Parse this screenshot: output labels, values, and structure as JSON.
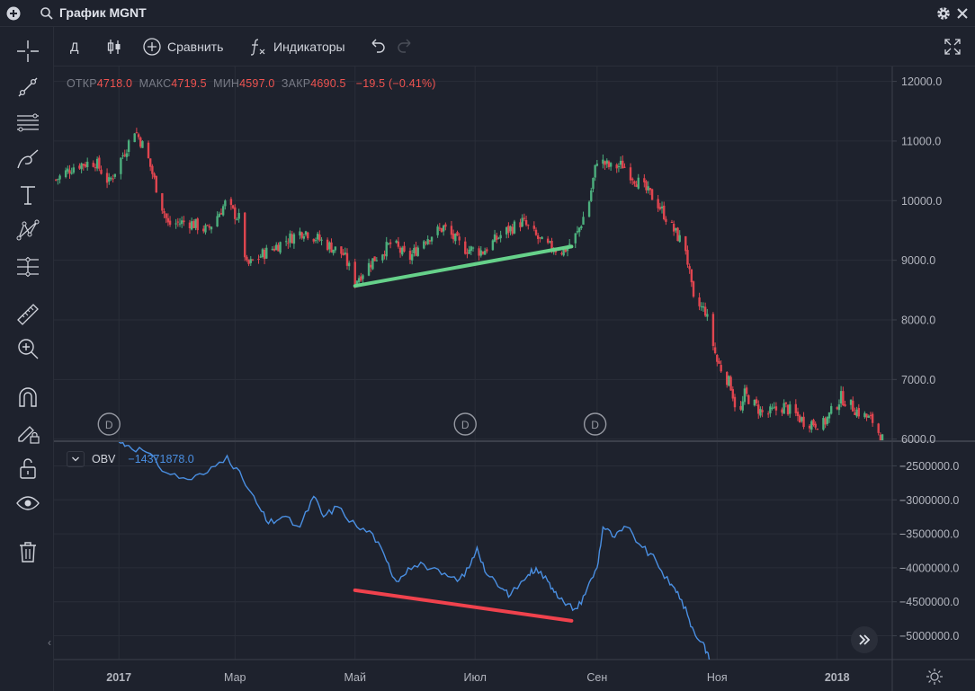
{
  "window": {
    "title": "График MGNT"
  },
  "toolbar": {
    "interval": "Д",
    "compare_label": "Сравнить",
    "indicators_label": "Индикаторы"
  },
  "legend": {
    "open_label": "ОТКР",
    "open_value": "4718.0",
    "high_label": "МАКС",
    "high_value": "4719.5",
    "low_label": "МИН",
    "low_value": "4597.0",
    "close_label": "ЗАКР",
    "close_value": "4690.5",
    "change": "−19.5 (−0.41%)"
  },
  "obv_legend": {
    "name": "OBV",
    "value": "−14371878.0"
  },
  "dividend_marker_label": "D",
  "colors": {
    "up": "#4caf7d",
    "down": "#e0454f",
    "obv": "#4a8fe2",
    "trend_up": "#66d18a",
    "trend_down": "#f0424d"
  },
  "chart_data": [
    {
      "type": "candlestick",
      "title": "MGNT",
      "x_tick_labels": [
        "2017",
        "Мар",
        "Май",
        "Июл",
        "Сен",
        "Ноя",
        "2018"
      ],
      "x_tick_dates": [
        "2017-01-01",
        "2017-03-01",
        "2017-05-01",
        "2017-07-01",
        "2017-09-01",
        "2017-11-01",
        "2018-01-01"
      ],
      "x_range": [
        "2016-11-29",
        "2018-01-29"
      ],
      "y_ticks": [
        6000,
        7000,
        8000,
        9000,
        10000,
        11000,
        12000
      ],
      "y_tick_labels": [
        "6000.0",
        "7000.0",
        "8000.0",
        "9000.0",
        "10000.0",
        "11000.0",
        "12000.0"
      ],
      "y_range": [
        5980,
        12250
      ],
      "grid": true,
      "close_path": [
        [
          "2016-11-30",
          10350
        ],
        [
          "2016-12-10",
          10600
        ],
        [
          "2016-12-20",
          10650
        ],
        [
          "2016-12-27",
          10300
        ],
        [
          "2017-01-05",
          10900
        ],
        [
          "2017-01-09",
          11200
        ],
        [
          "2017-01-15",
          10800
        ],
        [
          "2017-01-22",
          10000
        ],
        [
          "2017-01-26",
          9600
        ],
        [
          "2017-02-05",
          9650
        ],
        [
          "2017-02-15",
          9500
        ],
        [
          "2017-02-24",
          9950
        ],
        [
          "2017-03-03",
          9700
        ],
        [
          "2017-03-07",
          8900
        ],
        [
          "2017-03-15",
          9100
        ],
        [
          "2017-03-25",
          9300
        ],
        [
          "2017-04-05",
          9500
        ],
        [
          "2017-04-15",
          9300
        ],
        [
          "2017-04-25",
          9100
        ],
        [
          "2017-05-01",
          8650
        ],
        [
          "2017-05-10",
          9000
        ],
        [
          "2017-05-20",
          9300
        ],
        [
          "2017-05-28",
          9000
        ],
        [
          "2017-06-05",
          9350
        ],
        [
          "2017-06-15",
          9550
        ],
        [
          "2017-06-25",
          9200
        ],
        [
          "2017-07-05",
          9150
        ],
        [
          "2017-07-15",
          9450
        ],
        [
          "2017-07-25",
          9650
        ],
        [
          "2017-08-05",
          9250
        ],
        [
          "2017-08-15",
          9150
        ],
        [
          "2017-08-22",
          9450
        ],
        [
          "2017-08-28",
          10000
        ],
        [
          "2017-09-01",
          10700
        ],
        [
          "2017-09-08",
          10550
        ],
        [
          "2017-09-14",
          10600
        ],
        [
          "2017-09-22",
          10300
        ],
        [
          "2017-10-01",
          10000
        ],
        [
          "2017-10-10",
          9500
        ],
        [
          "2017-10-16",
          9200
        ],
        [
          "2017-10-20",
          8300
        ],
        [
          "2017-10-26",
          8150
        ],
        [
          "2017-11-01",
          7300
        ],
        [
          "2017-11-08",
          6900
        ],
        [
          "2017-11-12",
          6300
        ],
        [
          "2017-11-15",
          6750
        ],
        [
          "2017-11-25",
          6400
        ],
        [
          "2017-12-05",
          6550
        ],
        [
          "2017-12-15",
          6300
        ],
        [
          "2017-12-25",
          6250
        ],
        [
          "2018-01-03",
          6700
        ],
        [
          "2018-01-12",
          6450
        ],
        [
          "2018-01-19",
          6300
        ],
        [
          "2018-01-24",
          6000
        ]
      ],
      "dividend_markers": [
        "2016-12-27",
        "2017-06-26",
        "2017-08-31"
      ],
      "trendline": {
        "from": [
          "2017-05-01",
          8570
        ],
        "to": [
          "2017-08-19",
          9230
        ],
        "color": "up"
      },
      "last_close": 4690.5
    },
    {
      "type": "line",
      "series": [
        {
          "name": "OBV"
        }
      ],
      "y_ticks": [
        -2500000,
        -3000000,
        -3500000,
        -4000000,
        -4500000,
        -5000000
      ],
      "y_tick_labels": [
        "−2500000.0",
        "−3000000.0",
        "−3500000.0",
        "−4000000.0",
        "−4500000.0",
        "−5000000.0"
      ],
      "y_range": [
        -5350000,
        -2150000
      ],
      "grid": true,
      "path": [
        [
          "2017-01-01",
          -2150000
        ],
        [
          "2017-01-06",
          -2200000
        ],
        [
          "2017-01-15",
          -2300000
        ],
        [
          "2017-01-25",
          -2600000
        ],
        [
          "2017-02-05",
          -2700000
        ],
        [
          "2017-02-15",
          -2600000
        ],
        [
          "2017-02-25",
          -2350000
        ],
        [
          "2017-03-05",
          -2700000
        ],
        [
          "2017-03-12",
          -3050000
        ],
        [
          "2017-03-18",
          -3350000
        ],
        [
          "2017-03-25",
          -3250000
        ],
        [
          "2017-04-03",
          -3400000
        ],
        [
          "2017-04-10",
          -2950000
        ],
        [
          "2017-04-15",
          -3250000
        ],
        [
          "2017-04-22",
          -3100000
        ],
        [
          "2017-05-02",
          -3400000
        ],
        [
          "2017-05-10",
          -3500000
        ],
        [
          "2017-05-17",
          -3900000
        ],
        [
          "2017-05-22",
          -4200000
        ],
        [
          "2017-05-28",
          -4000000
        ],
        [
          "2017-06-05",
          -3950000
        ],
        [
          "2017-06-14",
          -4100000
        ],
        [
          "2017-06-22",
          -4200000
        ],
        [
          "2017-06-28",
          -4000000
        ],
        [
          "2017-07-02",
          -3700000
        ],
        [
          "2017-07-07",
          -4100000
        ],
        [
          "2017-07-14",
          -4300000
        ],
        [
          "2017-07-19",
          -4400000
        ],
        [
          "2017-07-28",
          -4100000
        ],
        [
          "2017-08-01",
          -4000000
        ],
        [
          "2017-08-07",
          -4200000
        ],
        [
          "2017-08-11",
          -4350000
        ],
        [
          "2017-08-16",
          -4550000
        ],
        [
          "2017-08-22",
          -4600000
        ],
        [
          "2017-08-27",
          -4300000
        ],
        [
          "2017-09-01",
          -4000000
        ],
        [
          "2017-09-04",
          -3400000
        ],
        [
          "2017-09-10",
          -3550000
        ],
        [
          "2017-09-16",
          -3400000
        ],
        [
          "2017-09-24",
          -3700000
        ],
        [
          "2017-10-01",
          -3900000
        ],
        [
          "2017-10-08",
          -4250000
        ],
        [
          "2017-10-12",
          -4350000
        ],
        [
          "2017-10-17",
          -4700000
        ],
        [
          "2017-10-21",
          -5000000
        ],
        [
          "2017-10-25",
          -5100000
        ],
        [
          "2017-10-28",
          -5350000
        ]
      ],
      "last_value": -14371878.0,
      "trendline": {
        "from": [
          "2017-05-01",
          -4330000
        ],
        "to": [
          "2017-08-19",
          -4780000
        ],
        "color": "down"
      }
    }
  ]
}
